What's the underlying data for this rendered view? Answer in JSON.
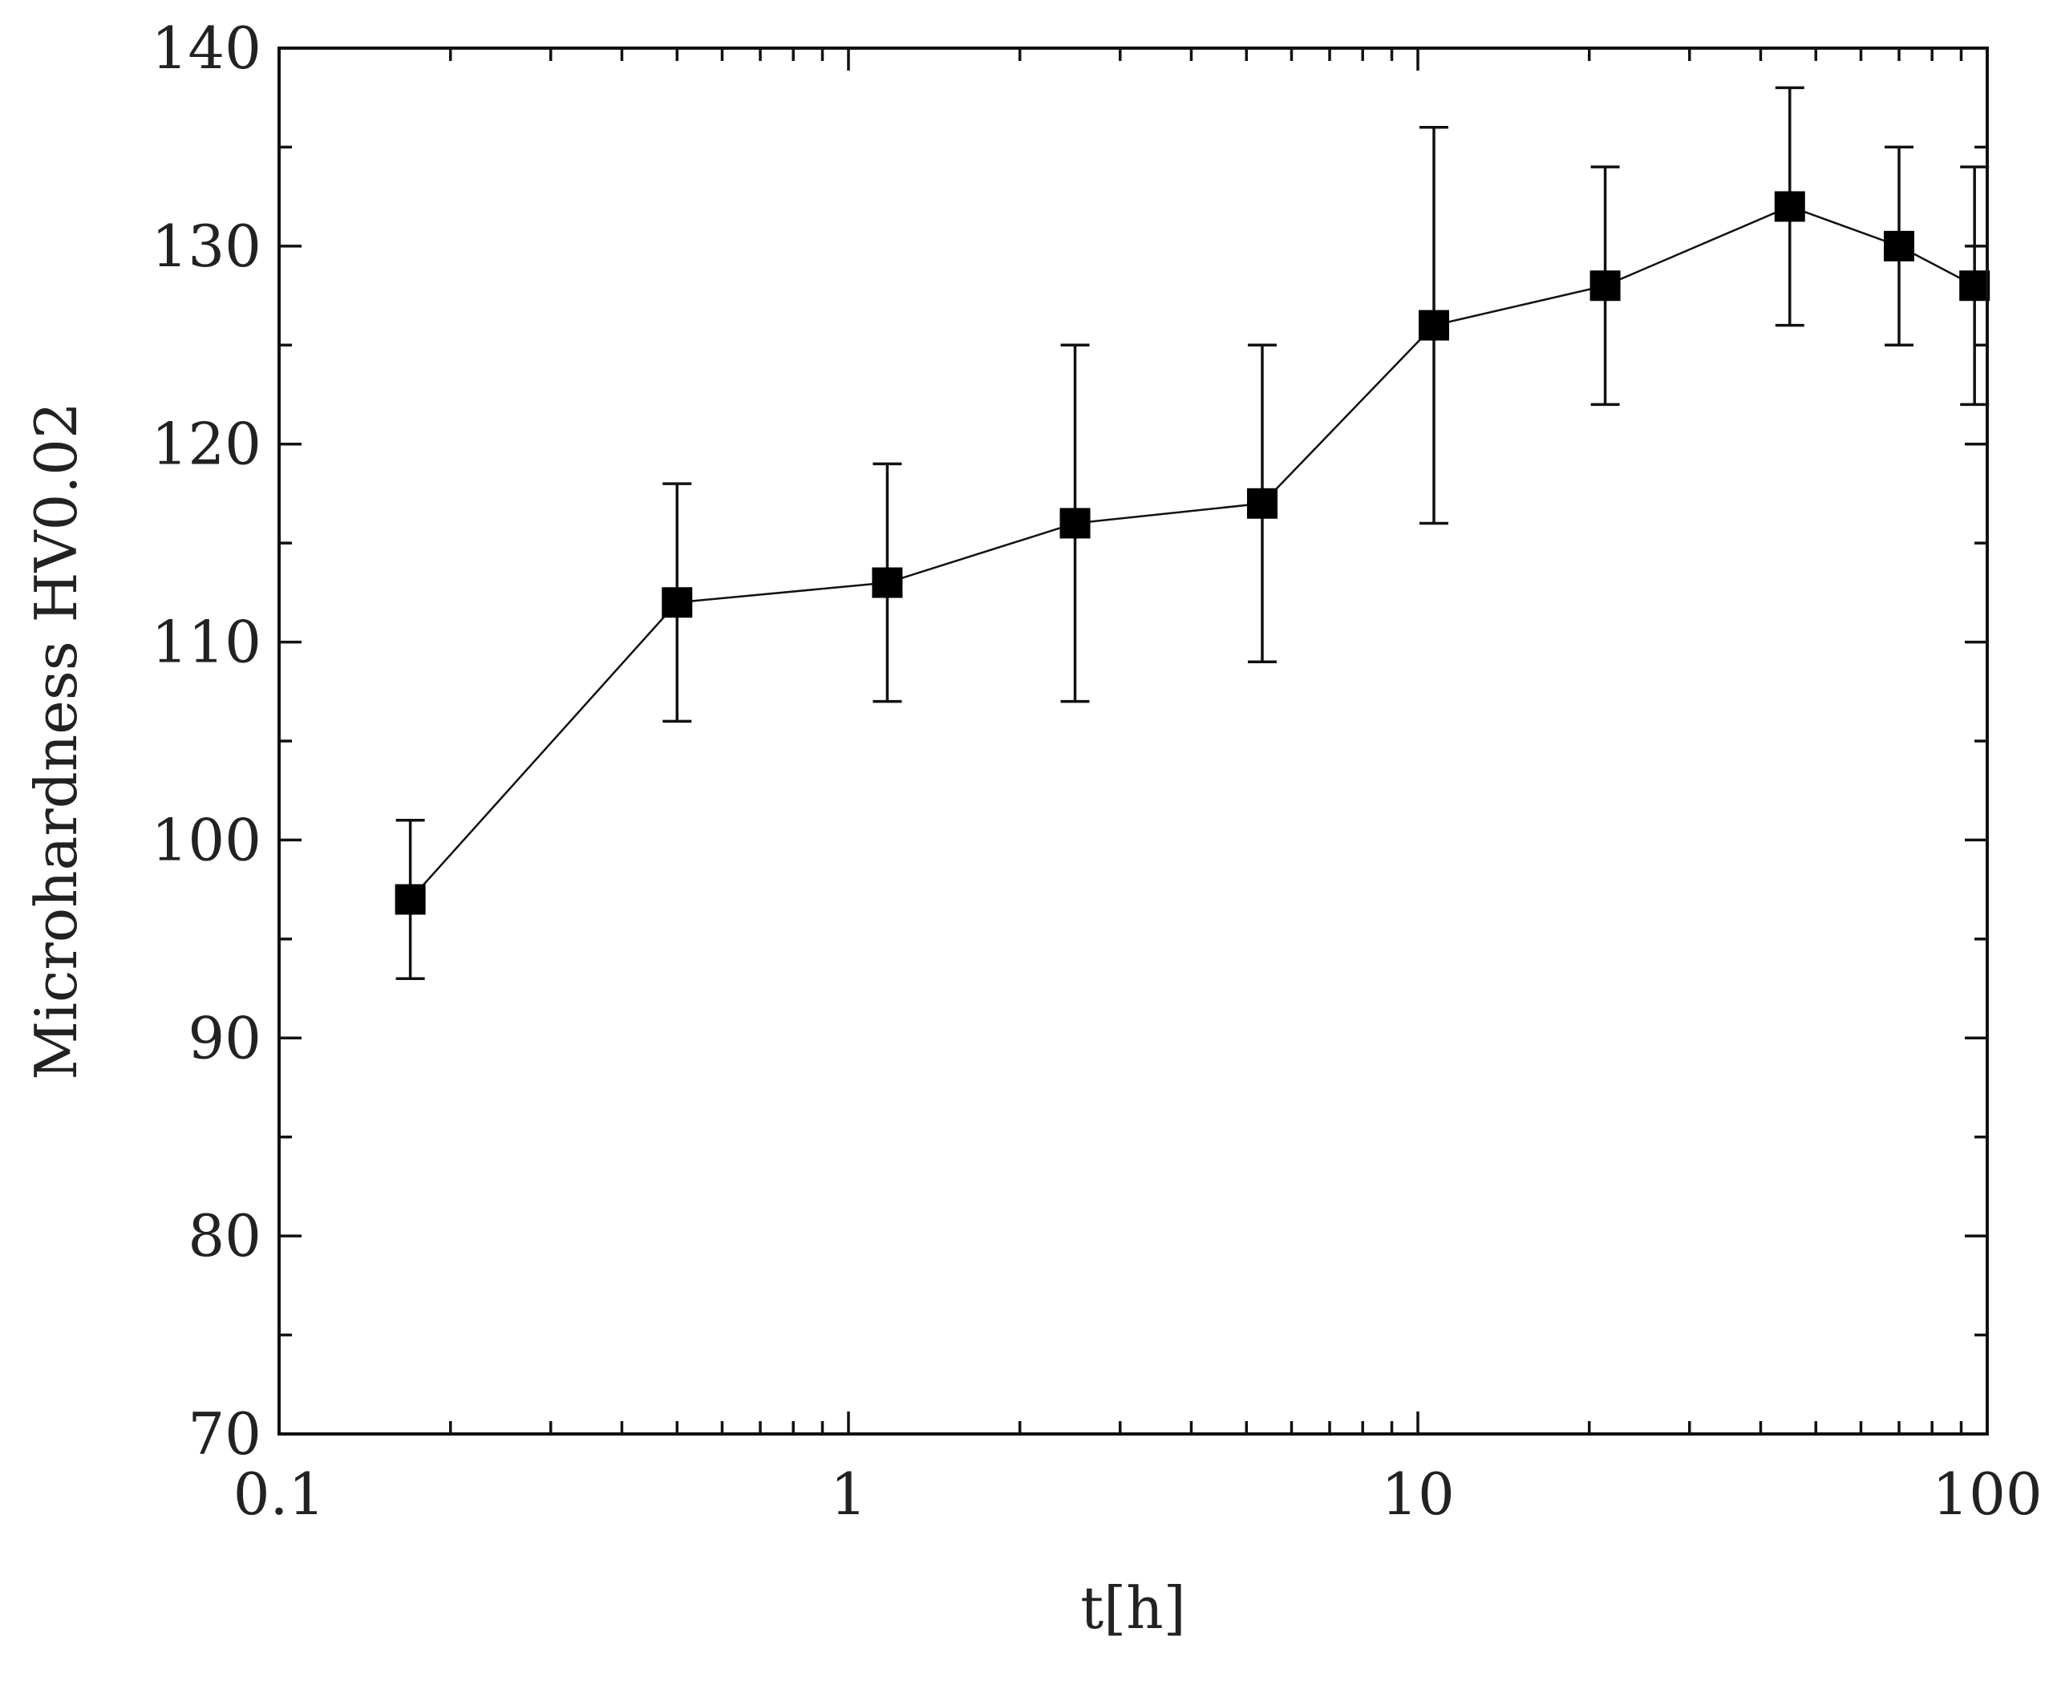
{
  "chart_data": {
    "type": "scatter",
    "xlabel": "t[h]",
    "ylabel": "Microhardness HV0.02",
    "x_scale": "log",
    "xlim": [
      0.1,
      100
    ],
    "ylim": [
      70,
      140
    ],
    "x_ticks": [
      "0.1",
      "1",
      "10",
      "100"
    ],
    "x_tick_values": [
      0.1,
      1,
      10,
      100
    ],
    "y_ticks": [
      "70",
      "80",
      "90",
      "100",
      "110",
      "120",
      "130",
      "140"
    ],
    "y_tick_values": [
      70,
      80,
      90,
      100,
      110,
      120,
      130,
      140
    ],
    "legend": "none",
    "grid": false,
    "series": [
      {
        "marker": "square",
        "color": "#000000",
        "x": [
          0.17,
          0.5,
          1.17,
          2.5,
          5.33,
          10.67,
          21.33,
          45,
          70,
          95
        ],
        "y": [
          97,
          112,
          113,
          116,
          117,
          126,
          128,
          132,
          130,
          128
        ],
        "err_low": [
          93,
          106,
          107,
          107,
          109,
          116,
          122,
          126,
          125,
          122
        ],
        "err_high": [
          101,
          118,
          119,
          125,
          125,
          136,
          134,
          138,
          135,
          134
        ]
      }
    ]
  }
}
